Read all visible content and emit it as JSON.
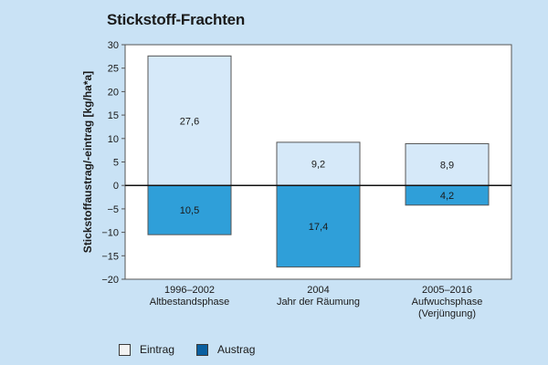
{
  "chart_data": {
    "type": "bar",
    "title": "Stickstoff-Frachten",
    "ylabel": "Stickstoffaustrag/-eintrag [kg/ha*a]",
    "xlabel": "",
    "ylim": [
      -20,
      30
    ],
    "yticks": [
      30,
      25,
      20,
      15,
      10,
      5,
      0,
      -5,
      -10,
      -15,
      -20
    ],
    "grid": false,
    "legend_position": "bottom-left",
    "categories": [
      [
        "1996–2002",
        "Altbestandsphase"
      ],
      [
        "2004",
        "Jahr der Räumung"
      ],
      [
        "2005–2016",
        "Aufwuchsphase",
        "(Verjüngung)"
      ]
    ],
    "series": [
      {
        "name": "Eintrag",
        "values": [
          27.6,
          9.2,
          8.9
        ],
        "labels": [
          "27,6",
          "9,2",
          "8,9"
        ],
        "color": "#d6e9f9"
      },
      {
        "name": "Austrag",
        "values": [
          -10.5,
          -17.4,
          -4.2
        ],
        "labels": [
          "10,5",
          "17,4",
          "4,2"
        ],
        "color": "#2f9fd9"
      }
    ],
    "legend_swatches": [
      "#f2f2f2",
      "#0a5fa0"
    ]
  }
}
